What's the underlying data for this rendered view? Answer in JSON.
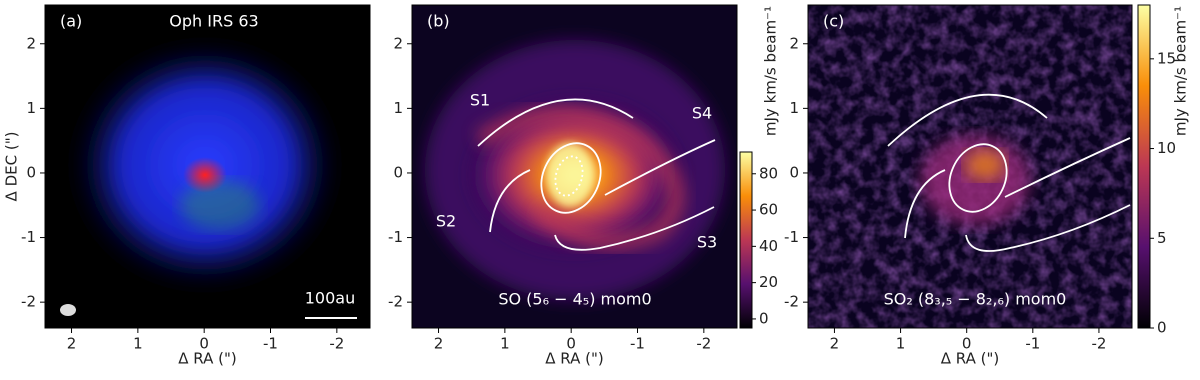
{
  "chart_data": [
    {
      "type": "image",
      "panel_label": "(a)",
      "annotations": [
        "Oph IRS 63",
        "100au"
      ],
      "xlabel": "Δ RA (\")",
      "ylabel": "Δ DEC (\")",
      "xlim": [
        2.4,
        -2.5
      ],
      "ylim": [
        -2.4,
        2.6
      ],
      "xticks": [
        2,
        1,
        0,
        -1,
        -2
      ],
      "yticks": [
        -2,
        -1,
        0,
        1,
        2
      ]
    },
    {
      "type": "image",
      "panel_label": "(b)",
      "annotations": [
        "S1",
        "S2",
        "S3",
        "S4",
        "SO (5₆ − 4₅)  mom0"
      ],
      "xlabel": "Δ RA (\")",
      "xlim": [
        2.4,
        -2.5
      ],
      "ylim": [
        -2.4,
        2.6
      ],
      "xticks": [
        2,
        1,
        0,
        -1,
        -2
      ],
      "yticks": [
        -2,
        -1,
        0,
        1,
        2
      ],
      "colorbar": {
        "label": "mJy km/s beam⁻¹",
        "ylim": [
          -5,
          92
        ],
        "yticks": [
          0,
          20,
          40,
          60,
          80
        ]
      }
    },
    {
      "type": "image",
      "panel_label": "(c)",
      "annotations": [
        "SO₂ (8₃,₅ − 8₂,₆)  mom0"
      ],
      "xlabel": "Δ RA (\")",
      "xlim": [
        2.4,
        -2.5
      ],
      "ylim": [
        -2.4,
        2.6
      ],
      "xticks": [
        2,
        1,
        0,
        -1,
        -2
      ],
      "yticks": [
        -2,
        -1,
        0,
        1,
        2
      ],
      "colorbar": {
        "label": "mJy km/s beam⁻¹",
        "ylim": [
          0,
          18
        ],
        "yticks": [
          0,
          5,
          10,
          15
        ]
      }
    }
  ]
}
